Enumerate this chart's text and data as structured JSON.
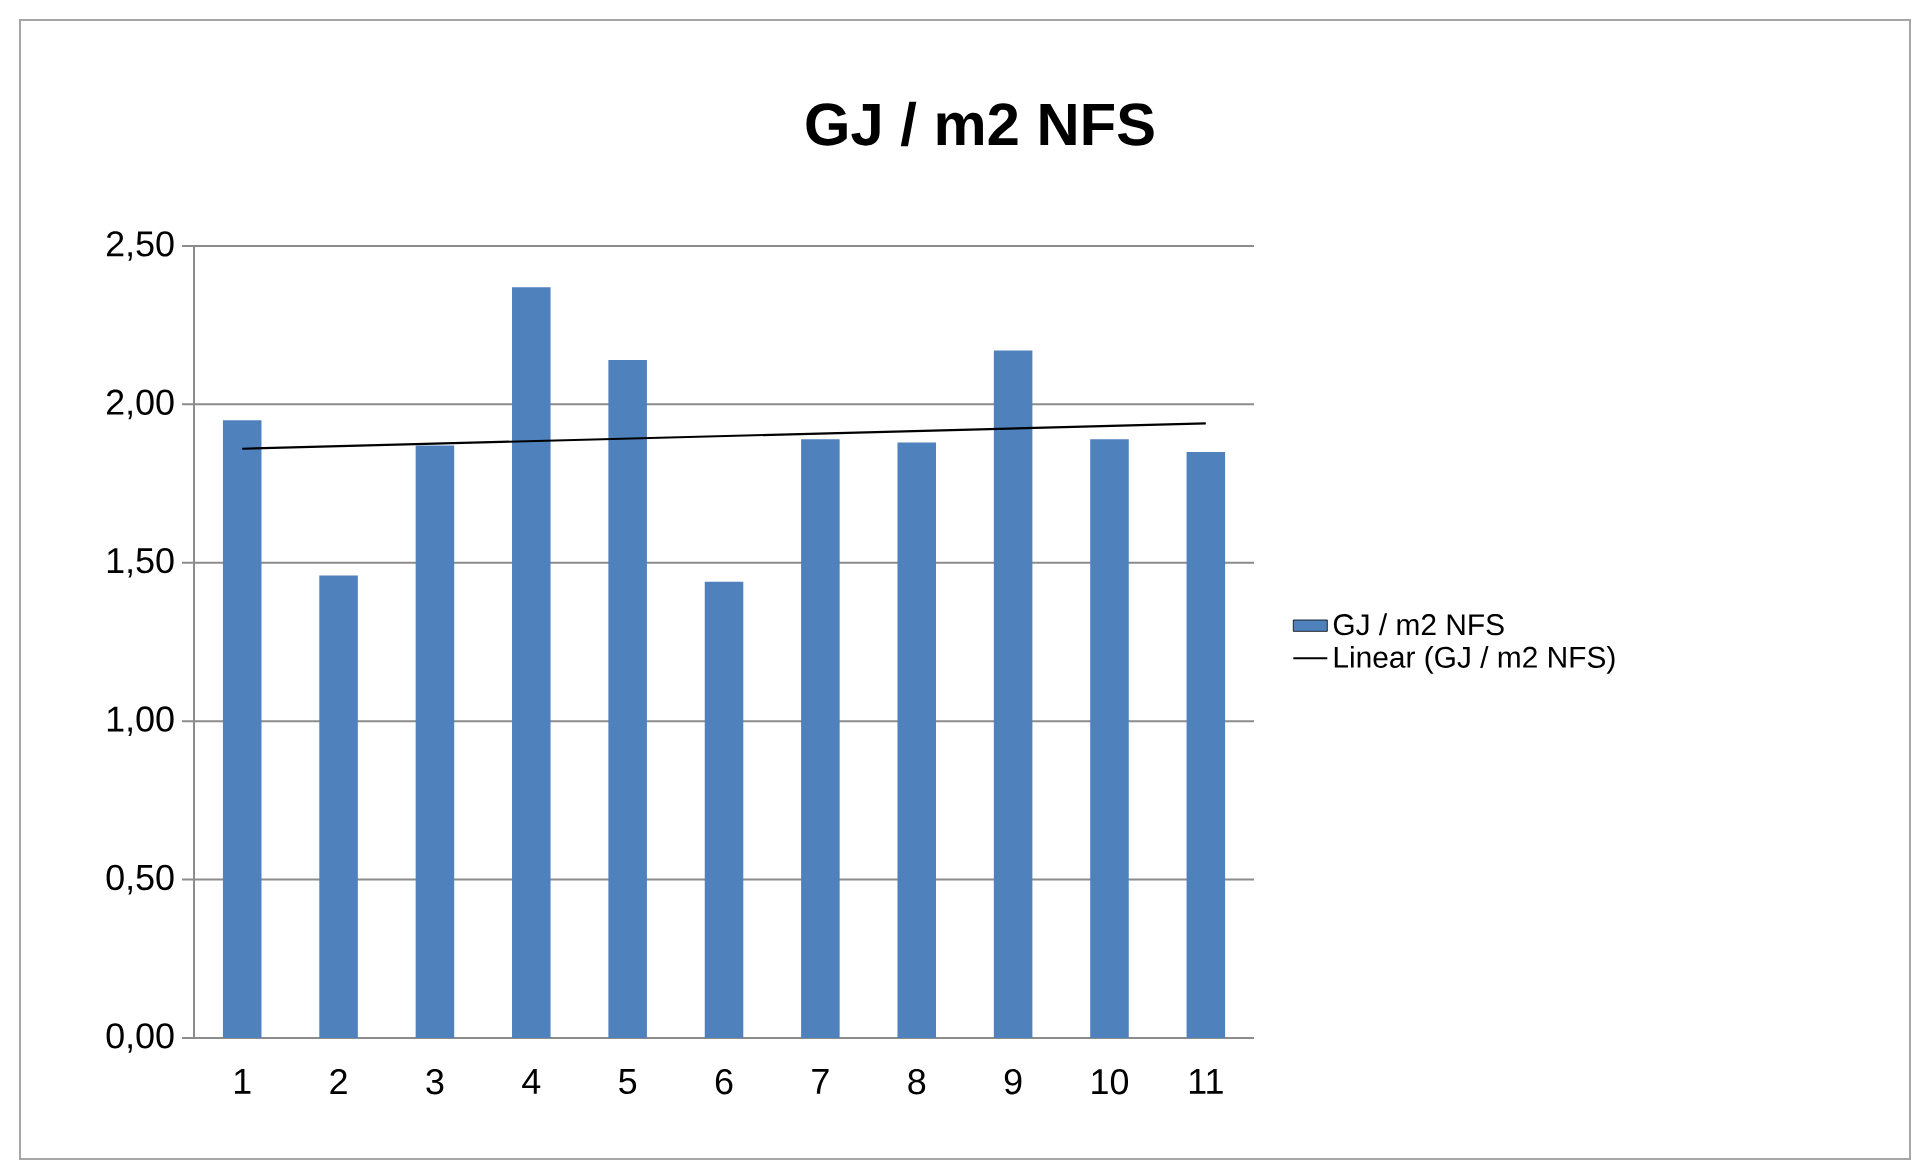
{
  "chart_data": {
    "type": "bar",
    "title": "GJ / m2 NFS",
    "categories": [
      "1",
      "2",
      "3",
      "4",
      "5",
      "6",
      "7",
      "8",
      "9",
      "10",
      "11"
    ],
    "series": [
      {
        "name": "GJ / m2 NFS",
        "color": "#4f81bd",
        "values": [
          1.95,
          1.46,
          1.87,
          2.37,
          2.14,
          1.44,
          1.89,
          1.88,
          2.17,
          1.89,
          1.85
        ]
      },
      {
        "name": "Linear (GJ / m2 NFS)",
        "type": "line",
        "color": "#000000",
        "x": [
          "1",
          "11"
        ],
        "values": [
          1.86,
          1.94
        ]
      }
    ],
    "ylim": [
      0,
      2.5
    ],
    "yticks": [
      {
        "value": 0,
        "label": "0,00"
      },
      {
        "value": 0.5,
        "label": "0,50"
      },
      {
        "value": 1,
        "label": "1,00"
      },
      {
        "value": 1.5,
        "label": "1,50"
      },
      {
        "value": 2,
        "label": "2,00"
      },
      {
        "value": 2.5,
        "label": "2,50"
      }
    ],
    "grid": "y",
    "legend": "right"
  }
}
